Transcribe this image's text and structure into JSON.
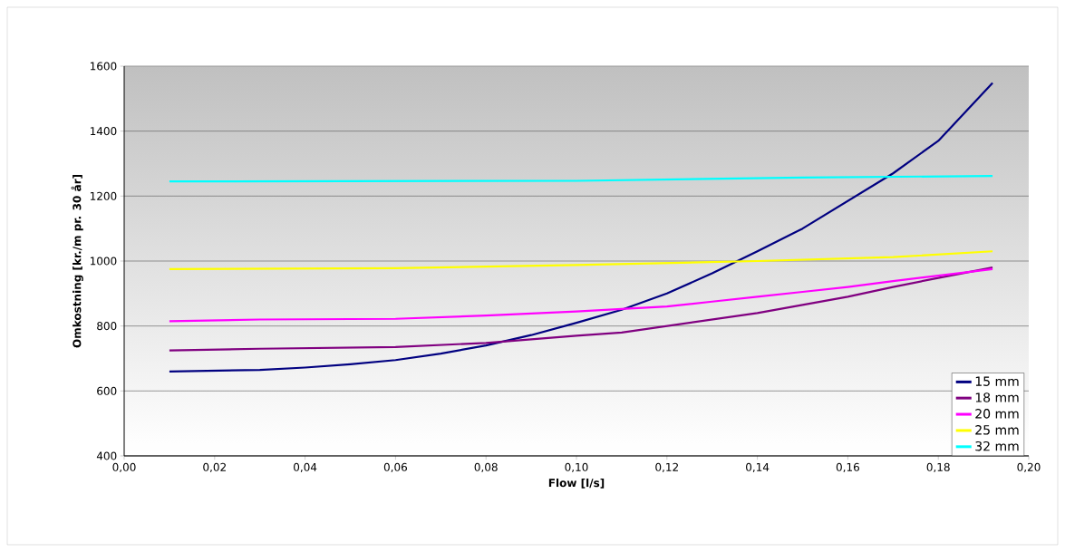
{
  "chart_data": {
    "type": "line",
    "xlabel": "Flow [l/s]",
    "ylabel": "Omkostning [kr./m pr. 30 år]",
    "xlim": [
      0,
      0.2
    ],
    "ylim": [
      400,
      1600
    ],
    "xticks": [
      {
        "value": 0,
        "label": "0,00"
      },
      {
        "value": 0.02,
        "label": "0,02"
      },
      {
        "value": 0.04,
        "label": "0,04"
      },
      {
        "value": 0.06,
        "label": "0,06"
      },
      {
        "value": 0.08,
        "label": "0,08"
      },
      {
        "value": 0.1,
        "label": "0,10"
      },
      {
        "value": 0.12,
        "label": "0,12"
      },
      {
        "value": 0.14,
        "label": "0,14"
      },
      {
        "value": 0.16,
        "label": "0,16"
      },
      {
        "value": 0.18,
        "label": "0,18"
      },
      {
        "value": 0.2,
        "label": "0,20"
      }
    ],
    "yticks": [
      400,
      600,
      800,
      1000,
      1200,
      1400,
      1600
    ],
    "grid": "y",
    "legend": "bottom right",
    "marker": "none",
    "line_style": "solid",
    "series": [
      {
        "name": "15 mm",
        "color": "#000080",
        "x": [
          0.01,
          0.03,
          0.04,
          0.05,
          0.06,
          0.07,
          0.08,
          0.09,
          0.1,
          0.11,
          0.12,
          0.13,
          0.14,
          0.15,
          0.16,
          0.17,
          0.18,
          0.192
        ],
        "values": [
          660,
          665,
          672,
          682,
          695,
          715,
          740,
          772,
          810,
          850,
          900,
          962,
          1030,
          1100,
          1185,
          1270,
          1370,
          1548
        ]
      },
      {
        "name": "18 mm",
        "color": "#800080",
        "x": [
          0.01,
          0.03,
          0.06,
          0.08,
          0.1,
          0.11,
          0.12,
          0.13,
          0.14,
          0.15,
          0.16,
          0.17,
          0.18,
          0.192
        ],
        "values": [
          725,
          730,
          735,
          748,
          770,
          780,
          800,
          820,
          840,
          865,
          890,
          920,
          948,
          980
        ]
      },
      {
        "name": "20 mm",
        "color": "#ff00ff",
        "x": [
          0.01,
          0.03,
          0.06,
          0.08,
          0.1,
          0.12,
          0.13,
          0.14,
          0.15,
          0.16,
          0.17,
          0.18,
          0.192
        ],
        "values": [
          815,
          820,
          822,
          832,
          845,
          860,
          875,
          890,
          905,
          920,
          938,
          955,
          975
        ]
      },
      {
        "name": "25 mm",
        "color": "#ffff00",
        "x": [
          0.01,
          0.06,
          0.1,
          0.14,
          0.17,
          0.192
        ],
        "values": [
          975,
          978,
          988,
          1000,
          1012,
          1030
        ]
      },
      {
        "name": "32 mm",
        "color": "#00ffff",
        "x": [
          0.01,
          0.1,
          0.15,
          0.192
        ],
        "values": [
          1245,
          1247,
          1257,
          1262
        ]
      }
    ]
  }
}
